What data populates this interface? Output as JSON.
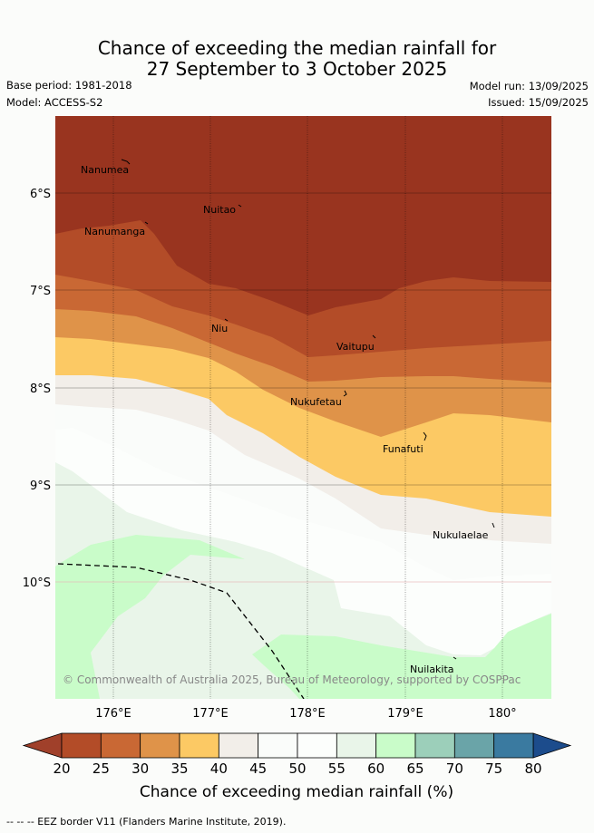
{
  "title_line1": "Chance of exceeding the median rainfall for",
  "title_line2": "27 September to 3 October 2025",
  "base_period": "Base period: 1981-2018",
  "model": "Model: ACCESS-S2",
  "model_run": "Model run: 13/09/2025",
  "issued": "Issued: 15/09/2025",
  "places": {
    "nanumea": "Nanumea",
    "nuitao": "Nuitao",
    "nanumanga": "Nanumanga",
    "niu": "Niu",
    "vaitupu": "Vaitupu",
    "nukufetau": "Nukufetau",
    "funafuti": "Funafuti",
    "nukulaelae": "Nukulaelae",
    "nuilakita": "Nuilakita"
  },
  "lat_ticks": [
    "6°S",
    "7°S",
    "8°S",
    "9°S",
    "10°S"
  ],
  "lon_ticks": [
    "176°E",
    "177°E",
    "178°E",
    "179°E",
    "180°"
  ],
  "copyright": "© Commonwealth of Australia 2025, Bureau of Meteorology, supported by COSPPac",
  "colorbar": {
    "ticks": [
      "20",
      "25",
      "30",
      "35",
      "40",
      "45",
      "50",
      "55",
      "60",
      "65",
      "70",
      "75",
      "80"
    ],
    "colors": [
      "#a0402a",
      "#b34c28",
      "#c96834",
      "#df9349",
      "#fcc964",
      "#f2eee9",
      "#fafcfa",
      "#fcfefc",
      "#e9f5e9",
      "#c9fcc9",
      "#9ccfba",
      "#6aa4a8",
      "#3a7aa0",
      "#1c4c8c"
    ],
    "title": "Chance of exceeding median rainfall (%)"
  },
  "footer": "-- -- -- EEZ border V11 (Flanders Marine Institute, 2019)."
}
